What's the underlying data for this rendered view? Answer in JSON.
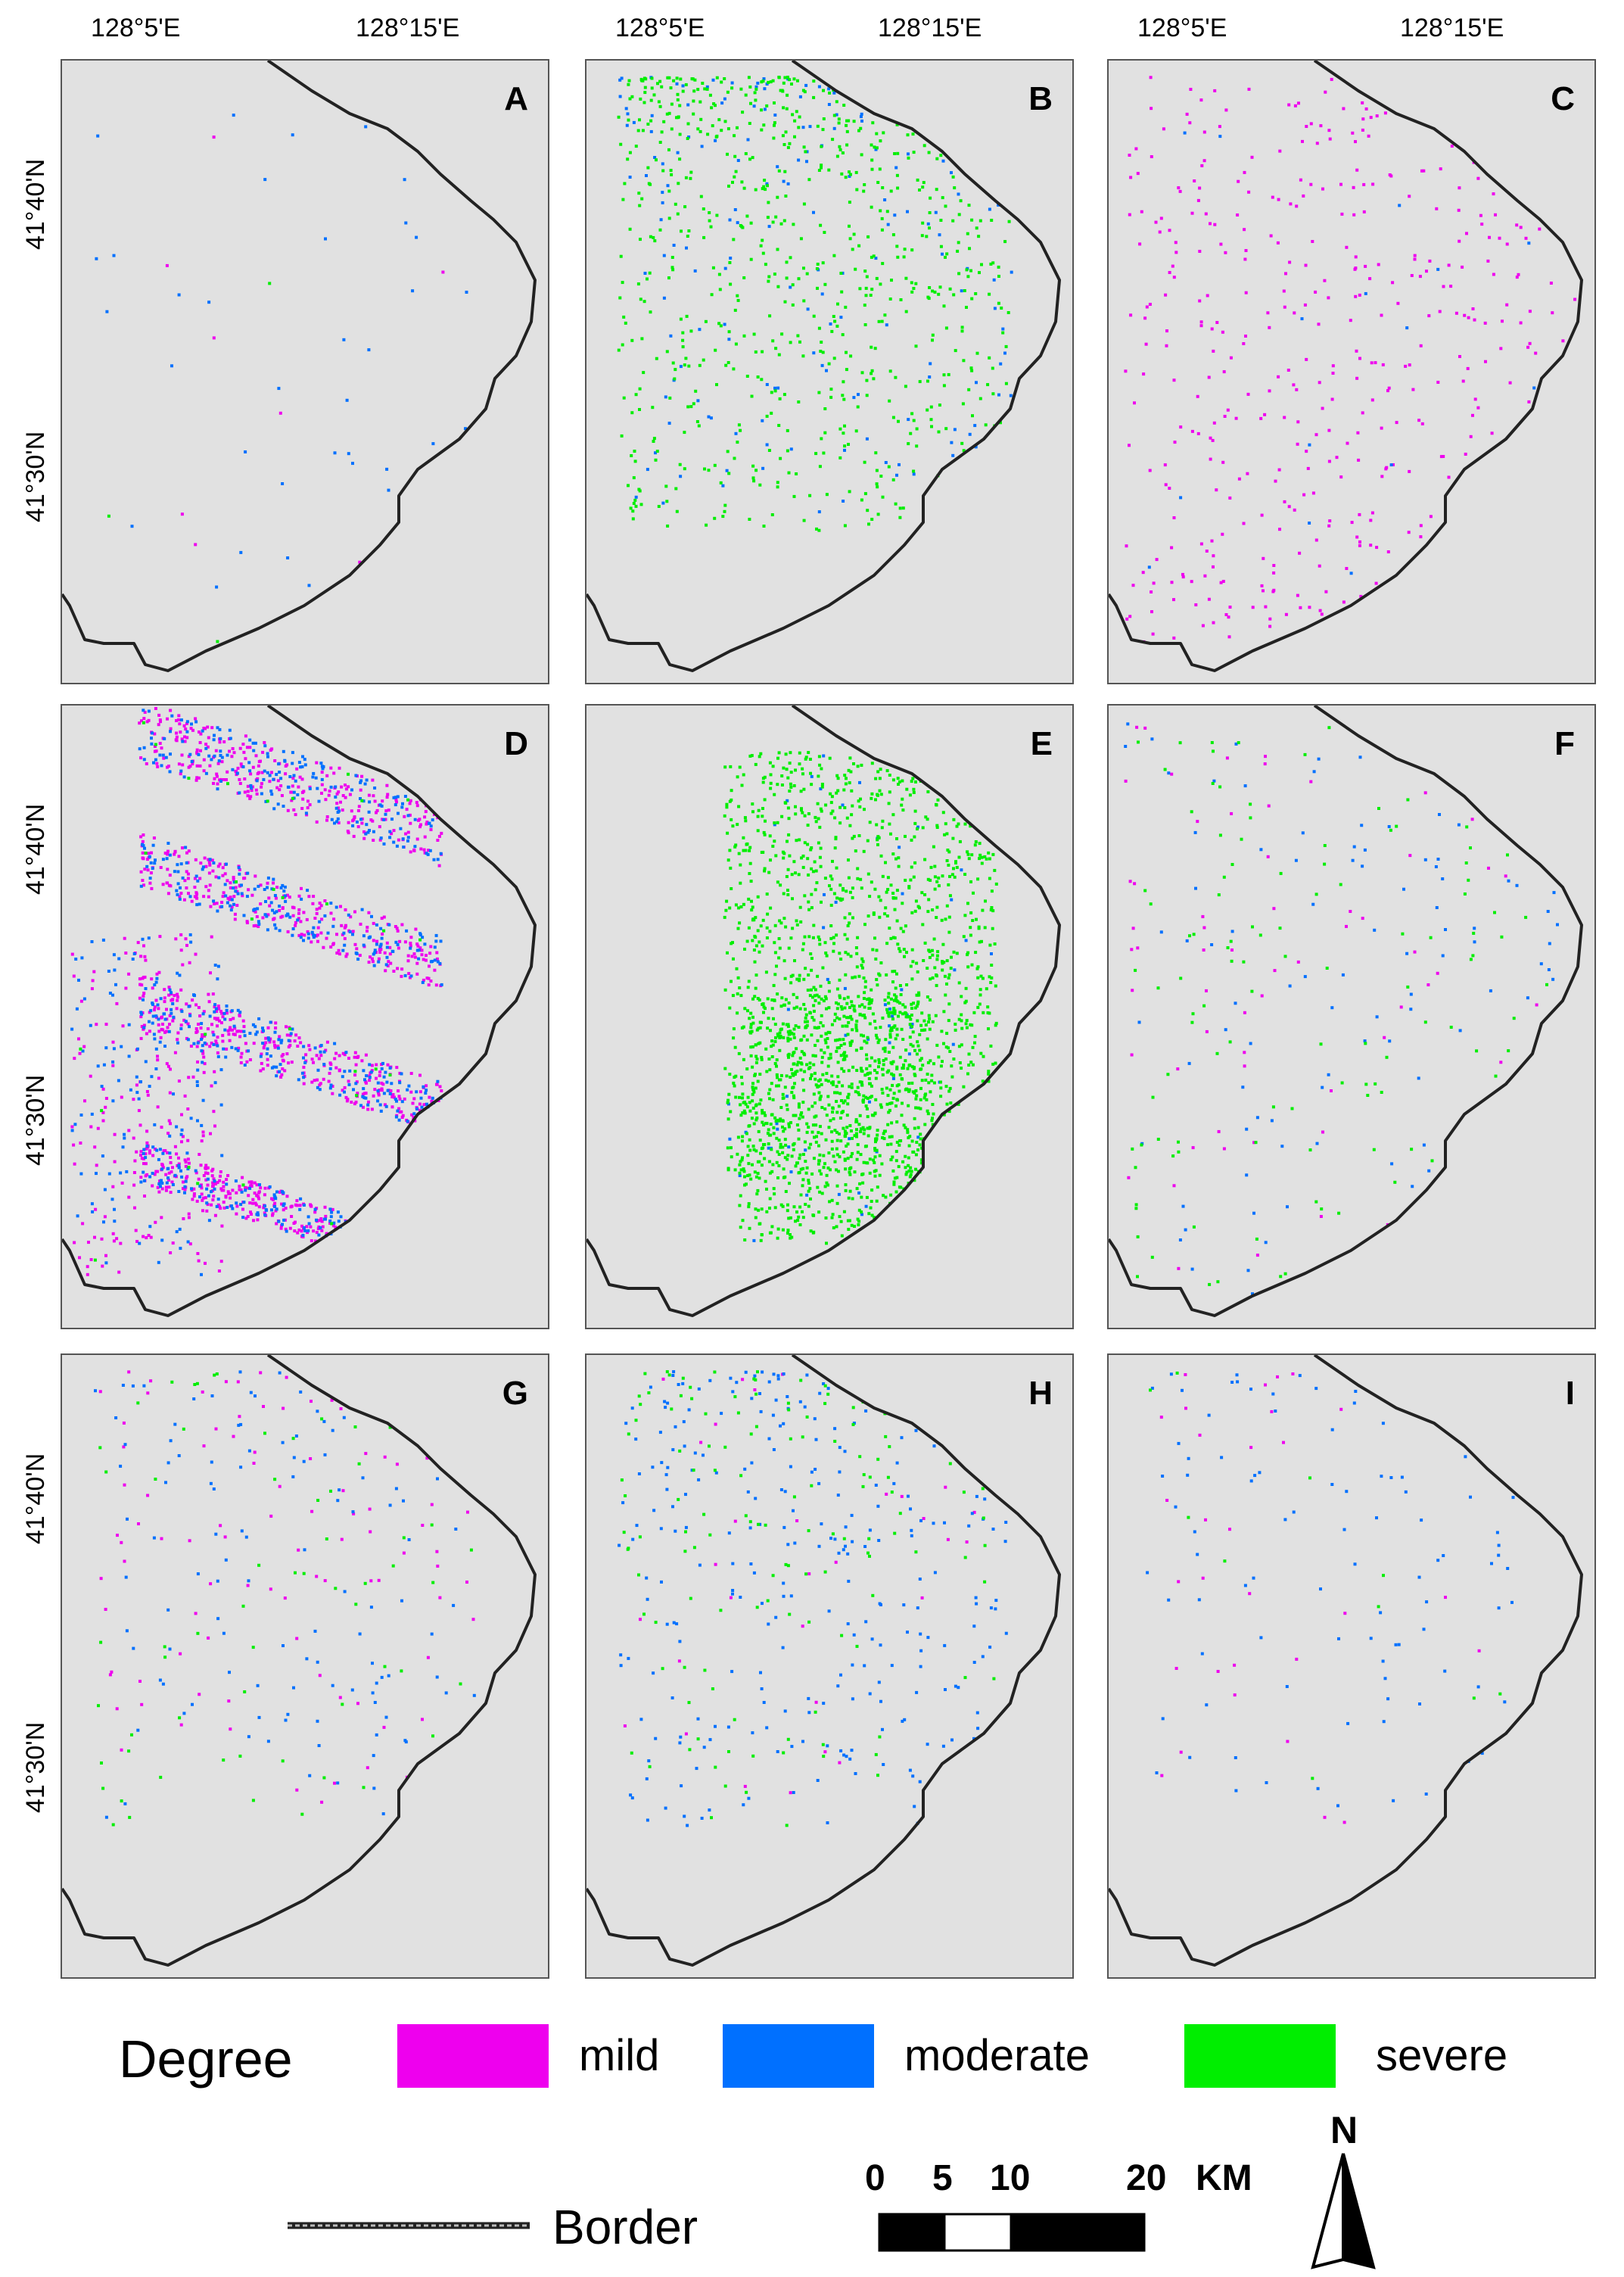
{
  "longitude_labels": [
    "128°5'E",
    "128°15'E"
  ],
  "latitude_labels": [
    "41°40'N",
    "41°30'N"
  ],
  "panels": [
    {
      "id": "A",
      "mild": 8,
      "moderate": 35,
      "severe": 3,
      "cluster": "none"
    },
    {
      "id": "B",
      "mild": 0,
      "moderate": 160,
      "severe": 700,
      "cluster": "north"
    },
    {
      "id": "C",
      "mild": 380,
      "moderate": 15,
      "severe": 0,
      "cluster": "spread"
    },
    {
      "id": "D",
      "mild": 1300,
      "moderate": 750,
      "severe": 30,
      "cluster": "ridges"
    },
    {
      "id": "E",
      "mild": 0,
      "moderate": 60,
      "severe": 1900,
      "cluster": "center"
    },
    {
      "id": "F",
      "mild": 60,
      "moderate": 90,
      "severe": 110,
      "cluster": "spread"
    },
    {
      "id": "G",
      "mild": 90,
      "moderate": 110,
      "severe": 60,
      "cluster": "north"
    },
    {
      "id": "H",
      "mild": 30,
      "moderate": 260,
      "severe": 130,
      "cluster": "north"
    },
    {
      "id": "I",
      "mild": 30,
      "moderate": 90,
      "severe": 10,
      "cluster": "north"
    }
  ],
  "legend": {
    "title": "Degree",
    "items": [
      {
        "label": "mild",
        "color": "#ee00ee"
      },
      {
        "label": "moderate",
        "color": "#0070ff"
      },
      {
        "label": "severe",
        "color": "#00ee00"
      }
    ],
    "border_label": "Border"
  },
  "scale_bar": {
    "ticks": [
      "0",
      "5",
      "10",
      "20"
    ],
    "unit": "KM"
  },
  "north_arrow": {
    "label": "N"
  },
  "colors": {
    "panel_background": "#e1e1e1",
    "border_line": "#222222"
  }
}
